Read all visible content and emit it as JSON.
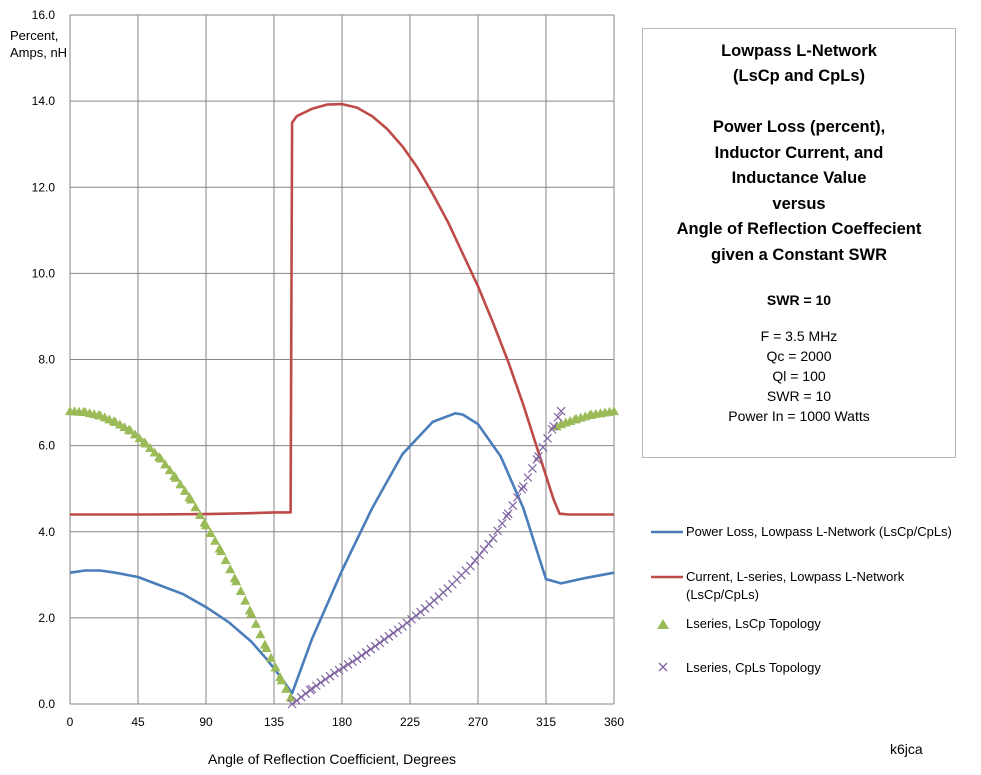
{
  "info_box": {
    "title_line1": "Lowpass L-Network",
    "title_line2": "(LsCp and CpLs)",
    "subtitle": [
      "Power Loss (percent),",
      "Inductor Current, and",
      "Inductance Value",
      "versus",
      "Angle of Reflection Coeffecient",
      "given a Constant  SWR"
    ],
    "swr_heading": "SWR = 10",
    "params": [
      "F = 3.5 MHz",
      "Qc = 2000",
      "Ql = 100",
      "SWR = 10",
      "Power In = 1000 Watts"
    ]
  },
  "signature": "k6jca",
  "colors": {
    "power_loss": "#4a7ebb",
    "current": "#be4b48",
    "lscp": "#9bbb59",
    "cpls": "#8064a2",
    "grid": "#868686"
  },
  "chart_data": {
    "type": "line",
    "title": "",
    "xlabel": "Angle of Reflection Coefficient, Degrees",
    "ylabel": "Percent, Amps, nH",
    "xlim": [
      0,
      360
    ],
    "ylim": [
      0,
      16
    ],
    "x_ticks": [
      "0",
      "45",
      "90",
      "135",
      "180",
      "225",
      "270",
      "315",
      "360"
    ],
    "y_ticks": [
      "0.0",
      "2.0",
      "4.0",
      "6.0",
      "8.0",
      "10.0",
      "12.0",
      "14.0",
      "16.0"
    ],
    "grid": true,
    "legend_position": "right",
    "series": [
      {
        "name": "Power Loss, Lowpass L-Network (LsCp/CpLs)",
        "style": "line",
        "x": [
          0,
          10,
          20,
          30,
          45,
          60,
          75,
          90,
          105,
          120,
          130,
          140,
          147,
          160,
          180,
          200,
          220,
          240,
          255,
          260,
          270,
          285,
          300,
          315,
          325,
          340,
          360
        ],
        "y": [
          3.05,
          3.1,
          3.1,
          3.05,
          2.95,
          2.75,
          2.55,
          2.25,
          1.9,
          1.45,
          1.05,
          0.6,
          0.25,
          1.5,
          3.1,
          4.55,
          5.8,
          6.55,
          6.75,
          6.72,
          6.5,
          5.75,
          4.55,
          2.9,
          2.8,
          2.92,
          3.05
        ]
      },
      {
        "name": "Current, L-series, Lowpass L-Network (LsCp/CpLs)",
        "style": "line",
        "x": [
          0,
          50,
          90,
          120,
          135,
          146,
          147,
          150,
          160,
          170,
          180,
          190,
          200,
          210,
          220,
          230,
          240,
          250,
          260,
          270,
          280,
          290,
          300,
          310,
          320,
          324,
          330,
          345,
          360
        ],
        "y": [
          4.4,
          4.4,
          4.41,
          4.43,
          4.45,
          4.45,
          13.5,
          13.65,
          13.82,
          13.92,
          13.93,
          13.85,
          13.65,
          13.35,
          12.95,
          12.45,
          11.85,
          11.2,
          10.45,
          9.7,
          8.85,
          7.95,
          6.95,
          5.85,
          4.75,
          4.42,
          4.4,
          4.4,
          4.4
        ]
      },
      {
        "name": "Lseries, LsCp Topology",
        "style": "triangle",
        "x": [
          0,
          10,
          20,
          30,
          40,
          50,
          60,
          70,
          80,
          90,
          100,
          110,
          120,
          130,
          140,
          146,
          322,
          325,
          335,
          345,
          360
        ],
        "y": [
          6.8,
          6.78,
          6.7,
          6.55,
          6.35,
          6.05,
          5.7,
          5.25,
          4.75,
          4.15,
          3.55,
          2.85,
          2.1,
          1.3,
          0.55,
          0.15,
          6.45,
          6.5,
          6.62,
          6.72,
          6.8
        ]
      },
      {
        "name": "Lseries, CpLs Topology",
        "style": "cross",
        "x": [
          147,
          160,
          175,
          190,
          205,
          220,
          235,
          250,
          265,
          280,
          290,
          300,
          310,
          320,
          325
        ],
        "y": [
          0.0,
          0.35,
          0.72,
          1.05,
          1.42,
          1.8,
          2.22,
          2.68,
          3.2,
          3.85,
          4.42,
          5.05,
          5.75,
          6.45,
          6.8
        ]
      }
    ]
  }
}
